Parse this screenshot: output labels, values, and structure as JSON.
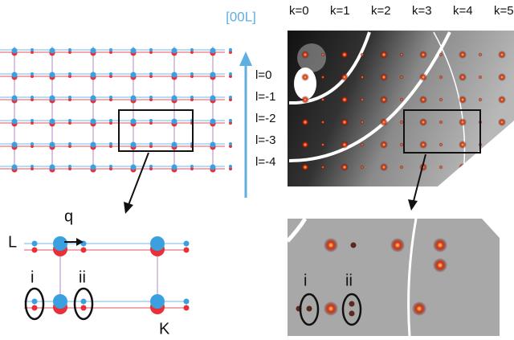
{
  "axis_label": "[00L]",
  "k_labels": [
    "k=0",
    "k=1",
    "k=2",
    "k=3",
    "k=4",
    "k=5"
  ],
  "l_labels": [
    "l=0",
    "l=-1",
    "l=-2",
    "l=-3",
    "l=-4"
  ],
  "schematic": {
    "q_label": "q",
    "L_label": "L",
    "K_label": "K",
    "markers": [
      "i",
      "ii"
    ]
  },
  "data_zoom": {
    "markers": [
      "i",
      "ii"
    ]
  }
}
